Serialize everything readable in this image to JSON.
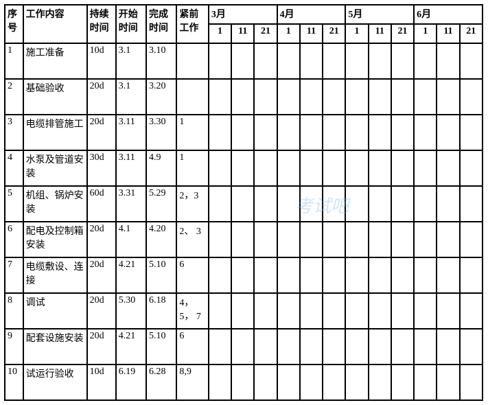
{
  "headers": {
    "seq": "序号",
    "content": "工作内容",
    "duration": "持续时间",
    "start": "开始时间",
    "end": "完成时间",
    "pred": "紧前工作",
    "months": [
      "3月",
      "4月",
      "5月",
      "6月"
    ],
    "days": [
      "1",
      "11",
      "21",
      "1",
      "11",
      "21",
      "1",
      "11",
      "21",
      "1",
      "11",
      "21"
    ]
  },
  "rows": [
    {
      "seq": "1",
      "content": "施工准备",
      "duration": "10d",
      "start": "3.1",
      "end": "3.10",
      "pred": ""
    },
    {
      "seq": "2",
      "content": "基础验收",
      "duration": "20d",
      "start": "3.1",
      "end": "3.20",
      "pred": ""
    },
    {
      "seq": "3",
      "content": "电缆排管施工",
      "duration": "20d",
      "start": "3.11",
      "end": "3.30",
      "pred": "1"
    },
    {
      "seq": "4",
      "content": "水泵及管道安装",
      "duration": "30d",
      "start": "3.11",
      "end": "4.9",
      "pred": "1"
    },
    {
      "seq": "5",
      "content": "机组、锅炉安装",
      "duration": "60d",
      "start": "3.31",
      "end": "5.29",
      "pred": "2，3"
    },
    {
      "seq": "6",
      "content": "配电及控制箱安装",
      "duration": "20d",
      "start": "4.1",
      "end": "4.20",
      "pred": "2、 3"
    },
    {
      "seq": "7",
      "content": "电缆敷设、连接",
      "duration": "20d",
      "start": "4.21",
      "end": "5.10",
      "pred": "6"
    },
    {
      "seq": "8",
      "content": "调试",
      "duration": "20d",
      "start": "5.30",
      "end": "6.18",
      "pred": "4，5， 7"
    },
    {
      "seq": "9",
      "content": "配套设施安装",
      "duration": "20d",
      "start": "4.21",
      "end": "5.10",
      "pred": "6"
    },
    {
      "seq": "10",
      "content": "试运行验收",
      "duration": "10d",
      "start": "6.19",
      "end": "6.28",
      "pred": "8,9"
    }
  ],
  "watermark": "考试吧",
  "style": {
    "font_family": "SimSun",
    "font_size_pt": 14,
    "border_color": "#000000",
    "background_color": "#ffffff",
    "text_color": "#000000",
    "watermark_color": "rgba(120,180,230,0.35)"
  }
}
